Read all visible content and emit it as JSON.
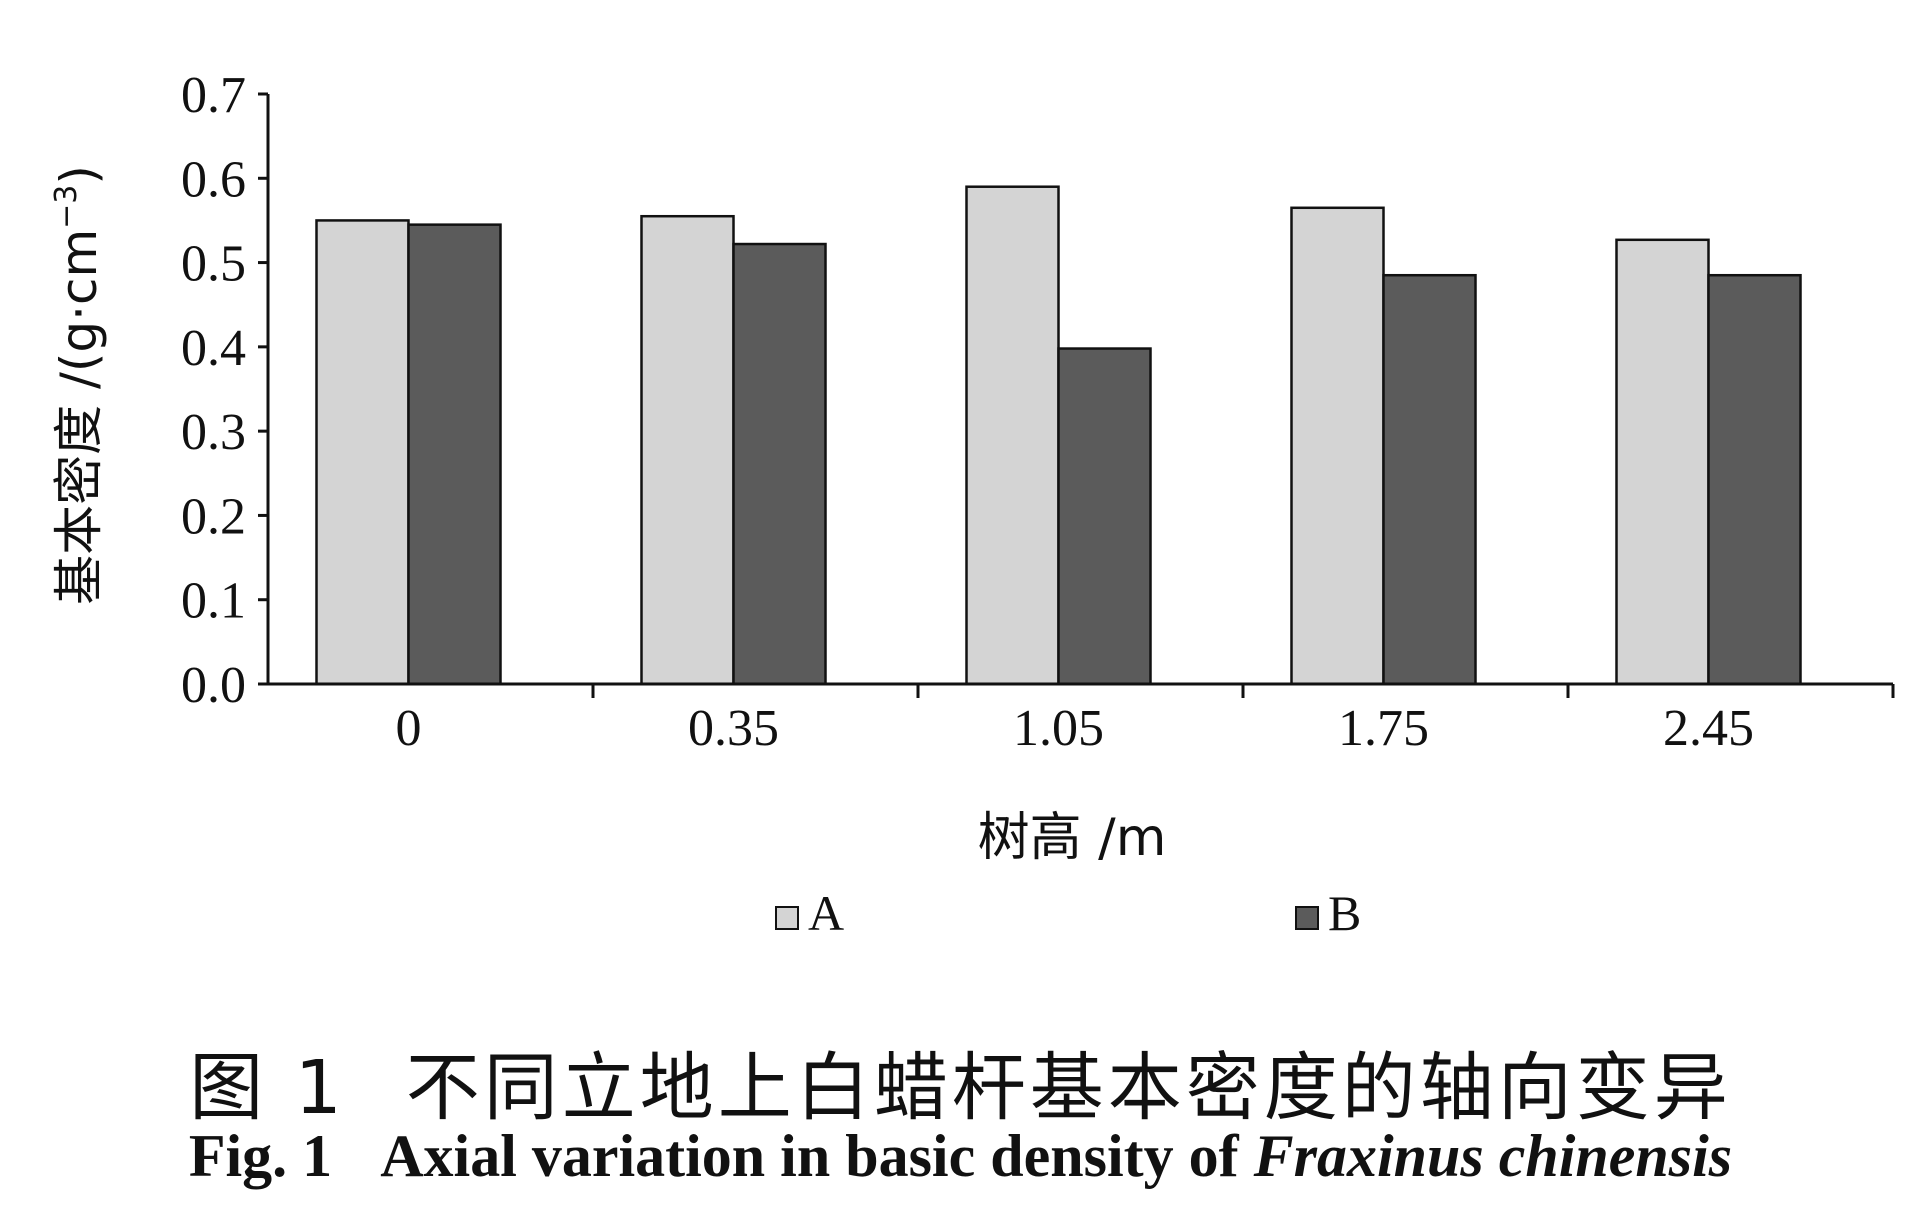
{
  "chart_data": {
    "type": "bar",
    "categories": [
      "0",
      "0.35",
      "1.05",
      "1.75",
      "2.45"
    ],
    "series": [
      {
        "name": "A",
        "values": [
          0.55,
          0.555,
          0.59,
          0.565,
          0.527
        ],
        "color": "#d4d4d4"
      },
      {
        "name": "B",
        "values": [
          0.545,
          0.522,
          0.398,
          0.485,
          0.485
        ],
        "color": "#5b5b5b"
      }
    ],
    "ylim": [
      0,
      0.7
    ],
    "yticks": [
      "0.0",
      "0.1",
      "0.2",
      "0.3",
      "0.4",
      "0.5",
      "0.6",
      "0.7"
    ],
    "xlabel": "树高 /m",
    "ylabel": "基本密度 /(g·cm",
    "ylabel_sup": "−3",
    "ylabel_close": ")",
    "legend_position": "bottom",
    "grid": false
  },
  "caption": {
    "cn_fig": "图 1",
    "cn_text": "不同立地上白蜡杆基本密度的轴向变异",
    "en_fig": "Fig. 1",
    "en_text": "Axial variation in basic density of ",
    "en_species": "Fraxinus chinensis"
  }
}
